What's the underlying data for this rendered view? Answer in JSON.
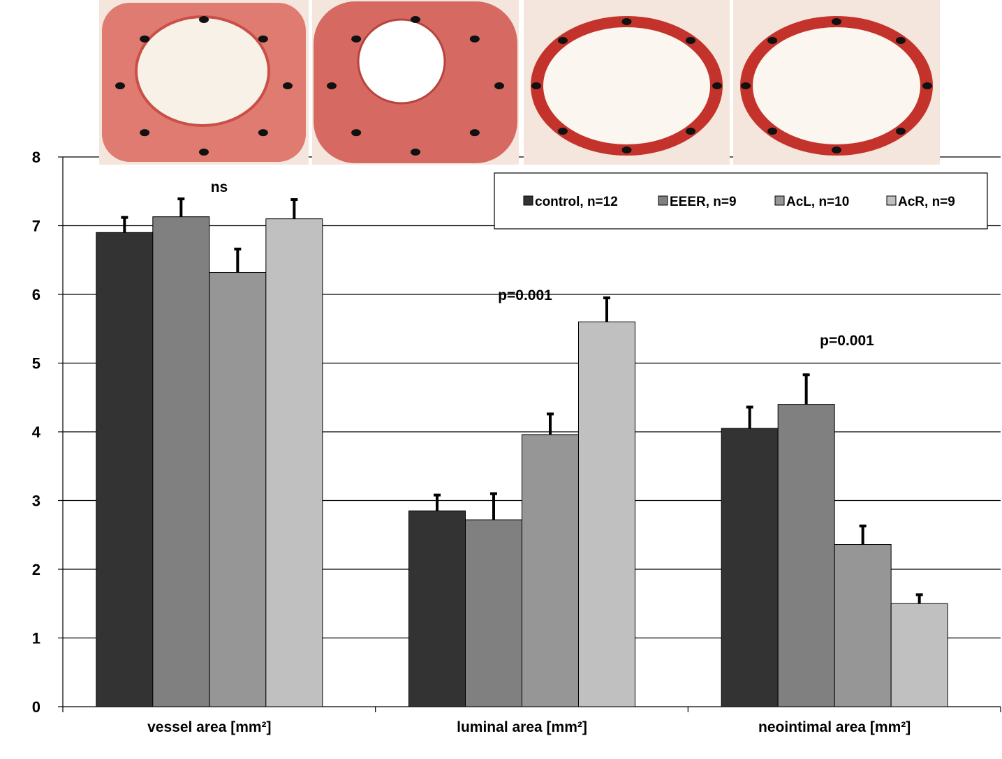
{
  "chart_data": {
    "type": "bar",
    "title": "",
    "xlabel": "",
    "ylabel": "",
    "ylim": [
      0,
      8
    ],
    "yticks": [
      0,
      1,
      2,
      3,
      4,
      5,
      6,
      7,
      8
    ],
    "grid": true,
    "legend_position": "top-right",
    "categories": [
      "vessel area [mm²]",
      "luminal area [mm²]",
      "neointimal area [mm²]"
    ],
    "series": [
      {
        "name": "control, n=12",
        "color": "#333333",
        "values": [
          6.9,
          2.85,
          4.05
        ],
        "errors": [
          0.22,
          0.23,
          0.31
        ]
      },
      {
        "name": "EEER, n=9",
        "color": "#808080",
        "values": [
          7.13,
          2.72,
          4.4
        ],
        "errors": [
          0.26,
          0.38,
          0.43
        ]
      },
      {
        "name": "AcL, n=10",
        "color": "#969696",
        "values": [
          6.32,
          3.96,
          2.36
        ],
        "errors": [
          0.34,
          0.3,
          0.27
        ]
      },
      {
        "name": "AcR, n=9",
        "color": "#c0c0c0",
        "values": [
          7.1,
          5.6,
          1.5
        ],
        "errors": [
          0.28,
          0.35,
          0.13
        ]
      }
    ],
    "annotations": [
      {
        "category": 0,
        "text": "ns"
      },
      {
        "category": 1,
        "text": "p=0.001"
      },
      {
        "category": 2,
        "text": "p=0.001"
      }
    ],
    "images": [
      {
        "name": "histology-control",
        "description": "vessel cross-section stained red"
      },
      {
        "name": "histology-eeer",
        "description": "vessel cross-section stained red"
      },
      {
        "name": "histology-acl",
        "description": "vessel cross-section stained red"
      },
      {
        "name": "histology-acr",
        "description": "vessel cross-section stained red"
      }
    ]
  }
}
